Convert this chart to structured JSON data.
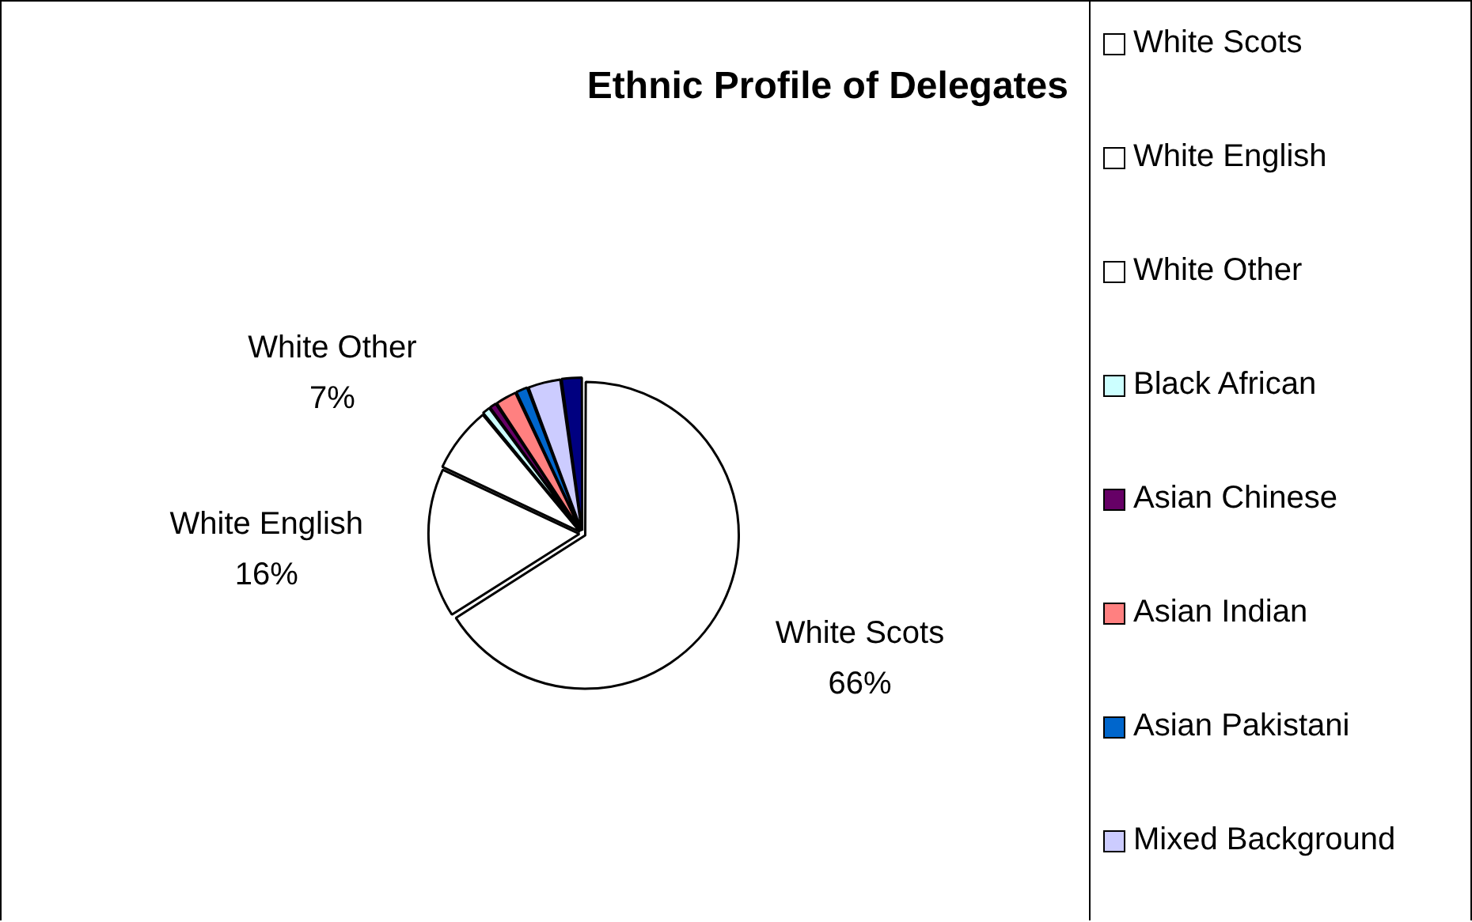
{
  "chart_data": {
    "type": "pie",
    "title": "Ethnic Profile of Delegates",
    "categories": [
      "White Scots",
      "White English",
      "White Other",
      "Black African",
      "Asian Chinese",
      "Asian Indian",
      "Asian Pakistani",
      "Mixed Background",
      null
    ],
    "values": [
      66,
      16,
      7,
      0.9,
      0.8,
      2.3,
      1.3,
      3.5,
      2.2
    ],
    "colors": [
      "#ffffff",
      "#ffffff",
      "#ffffff",
      "#ccffff",
      "#660066",
      "#ff8080",
      "#0066cc",
      "#ccccff",
      "#000080"
    ],
    "value_labels": [
      "66%",
      "16%",
      "7%",
      null,
      null,
      null,
      null,
      null,
      null
    ],
    "legend": "right"
  }
}
